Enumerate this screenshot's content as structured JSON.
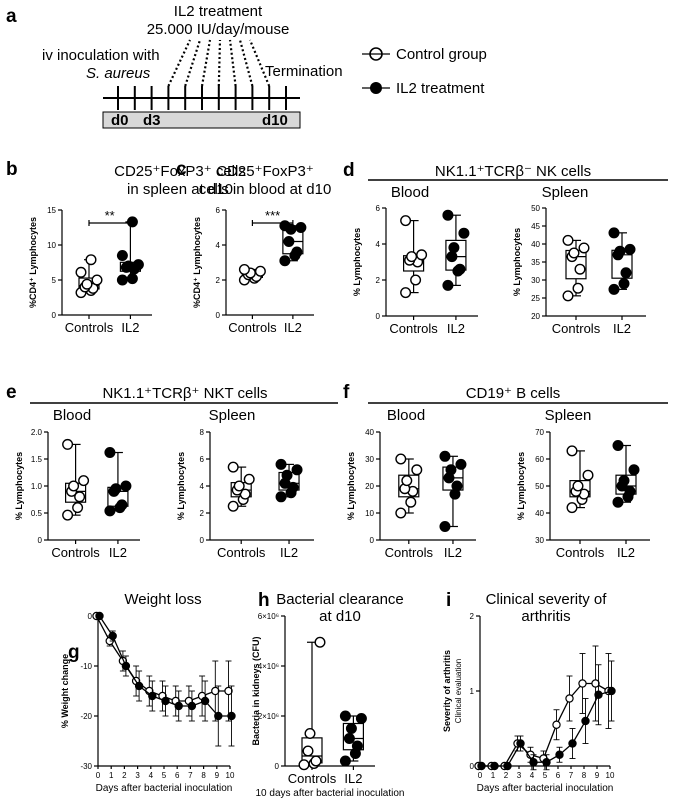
{
  "panel_a": {
    "label": "a",
    "treatment_line1": "IL2 treatment",
    "treatment_line2": "25.000 IU/day/mouse",
    "inoculation_line1": "iv inoculation with",
    "inoculation_line2": "S. aureus",
    "termination": "Termination",
    "day_start": "d0",
    "day_treat": "d3",
    "day_end": "d10"
  },
  "legend": {
    "control": "Control group",
    "il2": "IL2 treatment"
  },
  "section_labels": {
    "d": "d",
    "d_title": "NK1.1⁺TCRβ⁻ NK cells",
    "e": "e",
    "e_title": "NK1.1⁺TCRβ⁺ NKT cells",
    "f": "f",
    "f_title": "CD19⁺ B cells"
  },
  "chart_data": [
    {
      "id": "b",
      "label": "b",
      "type": "box",
      "title": [
        "CD25⁺FoxP3⁺ cells",
        "in spleen at d10"
      ],
      "ylabel": "%CD4⁺ Lymphocytes",
      "ylim": [
        0,
        15
      ],
      "yticks": [
        "0",
        "5",
        "10",
        "15"
      ],
      "categories": [
        "Controls",
        "IL2"
      ],
      "significance": "**",
      "series": [
        {
          "name": "Controls",
          "points": [
            3.2,
            3.5,
            3.8,
            4.0,
            4.4,
            5.0,
            6.1,
            7.9
          ]
        },
        {
          "name": "IL2",
          "points": [
            5.0,
            5.2,
            6.6,
            6.8,
            7.0,
            7.2,
            8.5,
            13.3
          ]
        }
      ]
    },
    {
      "id": "c",
      "label": "c",
      "type": "box",
      "title": [
        "CD25⁺FoxP3⁺",
        "cells in blood at d10"
      ],
      "ylabel": "%CD4⁺ Lymphocytes",
      "ylim": [
        0,
        6
      ],
      "yticks": [
        "0",
        "2",
        "4",
        "6"
      ],
      "categories": [
        "Controls",
        "IL2"
      ],
      "significance": "***",
      "series": [
        {
          "name": "Controls",
          "points": [
            2.0,
            2.1,
            2.2,
            2.3,
            2.4,
            2.5,
            2.6
          ]
        },
        {
          "name": "IL2",
          "points": [
            3.1,
            3.4,
            3.6,
            4.2,
            4.9,
            5.0,
            5.1
          ]
        }
      ]
    },
    {
      "id": "d_blood",
      "title": [
        "Blood"
      ],
      "type": "box",
      "ylabel": "% Lymphocytes",
      "ylim": [
        0,
        6
      ],
      "yticks": [
        "0",
        "2",
        "4",
        "6"
      ],
      "categories": [
        "Controls",
        "IL2"
      ],
      "series": [
        {
          "name": "Controls",
          "points": [
            1.3,
            2.0,
            3.0,
            3.1,
            3.3,
            3.4,
            5.3
          ]
        },
        {
          "name": "IL2",
          "points": [
            1.7,
            2.5,
            2.6,
            3.3,
            3.8,
            4.6,
            5.6
          ]
        }
      ]
    },
    {
      "id": "d_spleen",
      "title": [
        "Spleen"
      ],
      "type": "box",
      "ylabel": "% Lymphocytes",
      "ylim": [
        20,
        50
      ],
      "yticks": [
        "20",
        "25",
        "30",
        "35",
        "40",
        "45",
        "50"
      ],
      "categories": [
        "Controls",
        "IL2"
      ],
      "series": [
        {
          "name": "Controls",
          "points": [
            25.6,
            27.7,
            33.0,
            36.5,
            37.5,
            38.9,
            41.0
          ]
        },
        {
          "name": "IL2",
          "points": [
            27.4,
            29.0,
            32.0,
            37.0,
            38.0,
            38.5,
            43.1
          ]
        }
      ]
    },
    {
      "id": "e_blood",
      "title": [
        "Blood"
      ],
      "type": "box",
      "ylabel": "% Lymphocytes",
      "ylim": [
        0,
        2
      ],
      "yticks": [
        "0",
        "0.5",
        "1.0",
        "1.5",
        "2.0"
      ],
      "categories": [
        "Controls",
        "IL2"
      ],
      "series": [
        {
          "name": "Controls",
          "points": [
            0.46,
            0.6,
            0.8,
            0.9,
            1.0,
            1.1,
            1.77
          ]
        },
        {
          "name": "IL2",
          "points": [
            0.54,
            0.6,
            0.65,
            0.9,
            0.95,
            1.0,
            1.62
          ]
        }
      ]
    },
    {
      "id": "e_spleen",
      "title": [
        "Spleen"
      ],
      "type": "box",
      "ylabel": "% Lymphocytes",
      "ylim": [
        0,
        8
      ],
      "yticks": [
        "0",
        "2",
        "4",
        "6",
        "8"
      ],
      "categories": [
        "Controls",
        "IL2"
      ],
      "series": [
        {
          "name": "Controls",
          "points": [
            2.5,
            3.0,
            3.4,
            3.7,
            4.0,
            4.5,
            5.4
          ]
        },
        {
          "name": "IL2",
          "points": [
            3.2,
            3.5,
            3.9,
            4.2,
            4.8,
            5.2,
            5.6
          ]
        }
      ]
    },
    {
      "id": "f_blood",
      "title": [
        "Blood"
      ],
      "type": "box",
      "ylabel": "% Lymphocytes",
      "ylim": [
        0,
        40
      ],
      "yticks": [
        "0",
        "10",
        "20",
        "30",
        "40"
      ],
      "categories": [
        "Controls",
        "IL2"
      ],
      "series": [
        {
          "name": "Controls",
          "points": [
            10.0,
            14.0,
            18.0,
            19.0,
            22.0,
            26.0,
            30.0
          ]
        },
        {
          "name": "IL2",
          "points": [
            5.0,
            17.0,
            20.0,
            23.0,
            26.0,
            28.0,
            31.0
          ]
        }
      ]
    },
    {
      "id": "f_spleen",
      "title": [
        "Spleen"
      ],
      "type": "box",
      "ylabel": "% Lymphocytes",
      "ylim": [
        30,
        70
      ],
      "yticks": [
        "30",
        "40",
        "50",
        "60",
        "70"
      ],
      "categories": [
        "Controls",
        "IL2"
      ],
      "series": [
        {
          "name": "Controls",
          "points": [
            42,
            45,
            47,
            48,
            50,
            54,
            63
          ]
        },
        {
          "name": "IL2",
          "points": [
            44,
            46,
            48,
            50,
            52,
            56,
            65
          ]
        }
      ]
    },
    {
      "id": "g",
      "label": "g",
      "type": "line",
      "title": [
        "Weight loss"
      ],
      "ylabel": "% Weight change",
      "xlabel": "Days after bacterial inoculation",
      "ylim": [
        -30,
        0
      ],
      "yticks": [
        "-30",
        "-20",
        "-10",
        "0"
      ],
      "x": [
        0,
        1,
        2,
        3,
        4,
        5,
        6,
        7,
        8,
        9,
        10
      ],
      "series": [
        {
          "name": "Control group",
          "values": [
            0,
            -5,
            -9,
            -13,
            -15,
            -16,
            -17,
            -17,
            -16,
            -15,
            -15
          ],
          "err": [
            0,
            1,
            2,
            3,
            3,
            3,
            3,
            3,
            4,
            6,
            6
          ]
        },
        {
          "name": "IL2 treatment",
          "values": [
            0,
            -4,
            -10,
            -14,
            -16,
            -17,
            -18,
            -18,
            -17,
            -20,
            -20
          ],
          "err": [
            0,
            1,
            2,
            3,
            3,
            3,
            3,
            3,
            4,
            6,
            6
          ]
        }
      ]
    },
    {
      "id": "h",
      "label": "h",
      "type": "box",
      "title": [
        "Bacterial clearance",
        "at d10"
      ],
      "ylabel": "Bacteria in kidneys (CFU)",
      "xlabel": "10 days after bacterial inoculation",
      "ylim": [
        0,
        6000000
      ],
      "yticks": [
        "0",
        "2×10⁶",
        "4×10⁶",
        "6×10⁶"
      ],
      "categories": [
        "Controls",
        "IL2"
      ],
      "series": [
        {
          "name": "Controls",
          "points": [
            50000,
            100000,
            200000,
            600000,
            1300000,
            4950000
          ]
        },
        {
          "name": "IL2",
          "points": [
            200000,
            500000,
            800000,
            1100000,
            1500000,
            1900000,
            2000000
          ]
        }
      ]
    },
    {
      "id": "i",
      "label": "i",
      "type": "line",
      "title": [
        "Clinical severity of",
        "arthritis"
      ],
      "ylabel": "Severity of arthritis",
      "ylabel2": "Clinical evaluation",
      "xlabel": "Days after bacterial inoculation",
      "ylim": [
        0,
        2
      ],
      "yticks": [
        "0",
        "1",
        "2"
      ],
      "x": [
        0,
        1,
        2,
        3,
        4,
        5,
        6,
        7,
        8,
        9,
        10
      ],
      "series": [
        {
          "name": "Control group",
          "values": [
            0,
            0,
            0,
            0.3,
            0.15,
            0.1,
            0.55,
            0.9,
            1.1,
            1.1,
            1.0
          ],
          "err": [
            0,
            0,
            0,
            0.1,
            0.1,
            0.1,
            0.2,
            0.3,
            0.4,
            0.5,
            0.5
          ]
        },
        {
          "name": "IL2 treatment",
          "values": [
            0,
            0,
            0,
            0.3,
            0.05,
            0.05,
            0.15,
            0.3,
            0.6,
            0.95,
            1.0
          ],
          "err": [
            0,
            0,
            0,
            0.1,
            0.1,
            0.1,
            0.1,
            0.2,
            0.3,
            0.4,
            0.4
          ]
        }
      ]
    }
  ]
}
